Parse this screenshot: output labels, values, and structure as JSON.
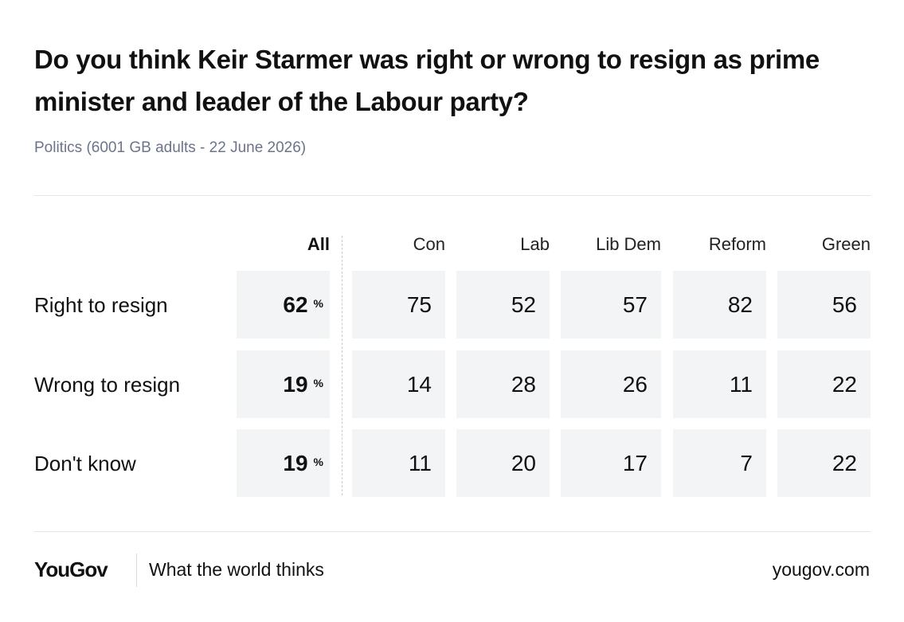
{
  "chart_data": {
    "type": "table",
    "title": "Do you think Keir Starmer was right or wrong to resign as prime minister and leader of the Labour party?",
    "subtitle": "Politics (6001 GB adults - 22 June 2026)",
    "total_column": "All",
    "columns": [
      "Con",
      "Lab",
      "Lib Dem",
      "Reform",
      "Green"
    ],
    "unit": "%",
    "rows": [
      {
        "label": "Right to resign",
        "all": 62,
        "values": [
          75,
          52,
          57,
          82,
          56
        ]
      },
      {
        "label": "Wrong to resign",
        "all": 19,
        "values": [
          14,
          28,
          26,
          11,
          22
        ]
      },
      {
        "label": "Don't know",
        "all": 19,
        "values": [
          11,
          20,
          17,
          7,
          22
        ]
      }
    ]
  },
  "footer": {
    "logo": "YouGov",
    "tagline": "What the world thinks",
    "url": "yougov.com"
  }
}
